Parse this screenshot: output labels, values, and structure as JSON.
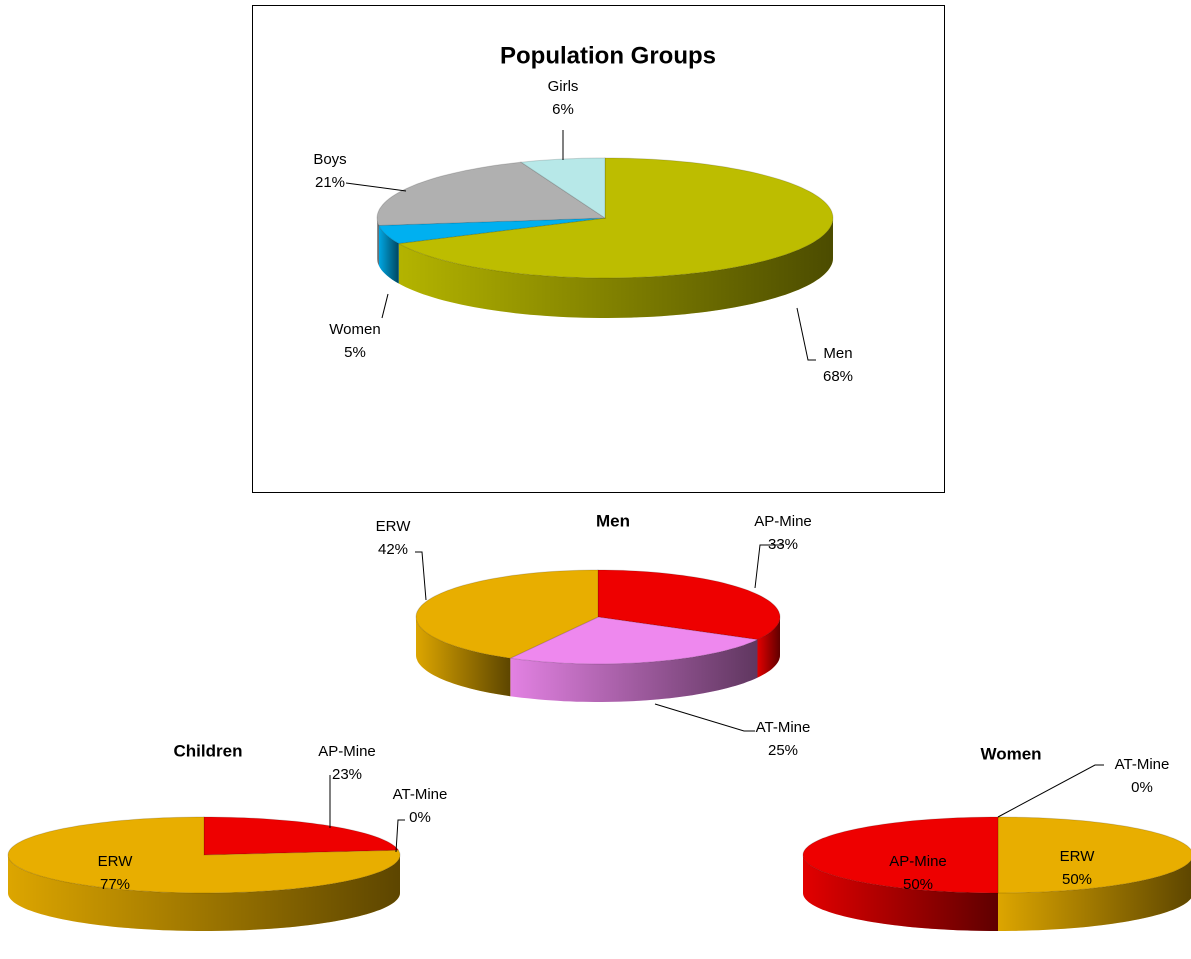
{
  "chart_data": [
    {
      "type": "pie3d",
      "title": "Population Groups",
      "categories": [
        "Men",
        "Women",
        "Boys",
        "Girls"
      ],
      "values": [
        68,
        5,
        21,
        6
      ],
      "value_labels": [
        "68%",
        "5%",
        "21%",
        "6%"
      ],
      "colors": [
        "#bdbd00",
        "#00b0f0",
        "#b0b0b0",
        "#b7e8e8"
      ]
    },
    {
      "type": "pie3d",
      "title": "Men",
      "categories": [
        "AP-Mine",
        "AT-Mine",
        "ERW"
      ],
      "values": [
        33,
        25,
        42
      ],
      "value_labels": [
        "33%",
        "25%",
        "42%"
      ],
      "colors": [
        "#ee0000",
        "#ee88ee",
        "#e8ae00"
      ]
    },
    {
      "type": "pie3d",
      "title": "Children",
      "categories": [
        "AP-Mine",
        "AT-Mine",
        "ERW"
      ],
      "values": [
        23,
        0,
        77
      ],
      "value_labels": [
        "23%",
        "0%",
        "77%"
      ],
      "colors": [
        "#ee0000",
        "#ee88ee",
        "#e8ae00"
      ]
    },
    {
      "type": "pie3d",
      "title": "Women",
      "categories": [
        "AT-Mine",
        "ERW",
        "AP-Mine"
      ],
      "values": [
        0,
        50,
        50
      ],
      "value_labels": [
        "0%",
        "50%",
        "50%"
      ],
      "colors": [
        "#ee88ee",
        "#e8ae00",
        "#ee0000"
      ]
    }
  ]
}
